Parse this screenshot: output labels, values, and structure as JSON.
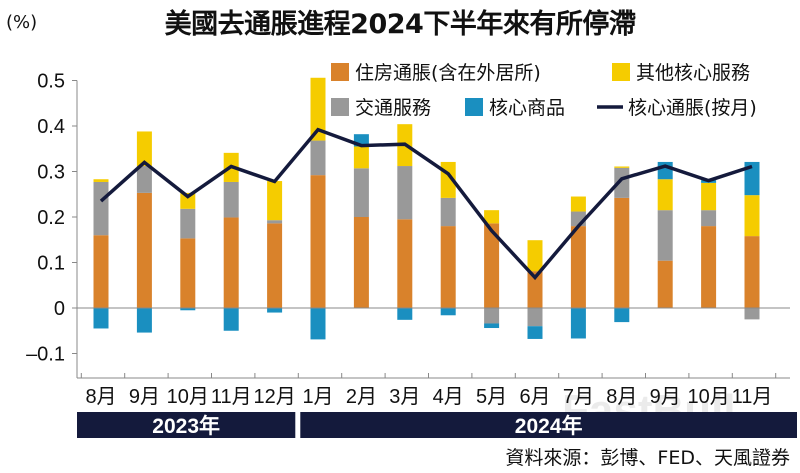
{
  "title": "美國去通脹進程2024下半年來有所停滯",
  "unit": "(%)",
  "source": "資料來源：彭博、FED、天風證券",
  "watermark": "FastBull",
  "chart_data": {
    "type": "bar",
    "stacked": true,
    "title": "美國去通脹進程2024下半年來有所停滯",
    "ylabel": "(%)",
    "ylim": [
      -0.15,
      0.5
    ],
    "yticks": [
      -0.1,
      0,
      0.1,
      0.2,
      0.3,
      0.4,
      0.5
    ],
    "ytick_labels": [
      "-0.1",
      "0",
      "0.1",
      "0.2",
      "0.3",
      "0.4",
      "0.5"
    ],
    "grid": false,
    "legend_placement": "top-right",
    "categories": [
      "8月",
      "9月",
      "10月",
      "11月",
      "12月",
      "1月",
      "2月",
      "3月",
      "4月",
      "5月",
      "6月",
      "7月",
      "8月",
      "9月",
      "10月",
      "11月"
    ],
    "year_groups": [
      {
        "label": "2023年",
        "count": 5
      },
      {
        "label": "2024年",
        "count": 11
      }
    ],
    "series": [
      {
        "name": "住房通脹(含在外居所)",
        "color": "#d9822b",
        "values": [
          0.16,
          0.253,
          0.153,
          0.199,
          0.186,
          0.292,
          0.2,
          0.195,
          0.18,
          0.186,
          0.081,
          0.18,
          0.242,
          0.104,
          0.18,
          0.158
        ]
      },
      {
        "name": "交通服務",
        "color": "#999999",
        "values": [
          0.117,
          0.059,
          0.065,
          0.078,
          0.007,
          0.076,
          0.107,
          0.117,
          0.062,
          -0.034,
          -0.04,
          0.032,
          0.066,
          0.111,
          0.035,
          -0.025
        ]
      },
      {
        "name": "其他核心服務",
        "color": "#f5cc00",
        "values": [
          0.006,
          0.076,
          0.035,
          0.064,
          0.086,
          0.138,
          0.048,
          0.092,
          0.079,
          0.029,
          0.068,
          0.033,
          0.003,
          0.068,
          0.06,
          0.09
        ]
      },
      {
        "name": "核心商品",
        "color": "#1a8fc0",
        "values": [
          -0.045,
          -0.054,
          -0.005,
          -0.05,
          -0.01,
          -0.069,
          0.027,
          -0.026,
          -0.016,
          -0.01,
          -0.028,
          -0.067,
          -0.031,
          0.038,
          0.006,
          0.073
        ]
      },
      {
        "name": "核心通脹(按月)",
        "type": "line",
        "color": "#141a3c",
        "values": [
          0.235,
          0.32,
          0.245,
          0.311,
          0.278,
          0.392,
          0.357,
          0.36,
          0.295,
          0.17,
          0.067,
          0.18,
          0.284,
          0.312,
          0.28,
          0.311
        ]
      }
    ]
  },
  "colors": {
    "band": "#141a3c",
    "axis": "#888888"
  }
}
